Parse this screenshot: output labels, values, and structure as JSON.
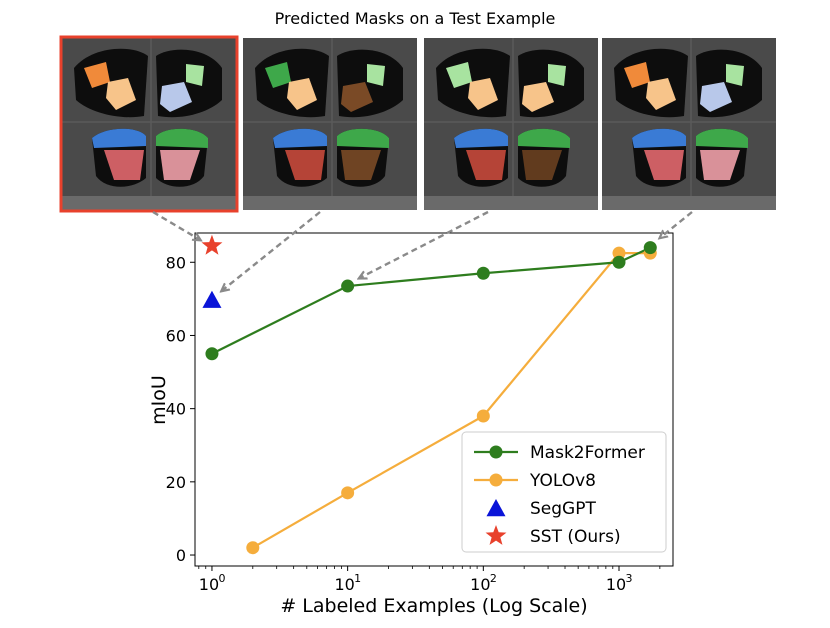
{
  "figure": {
    "title": "Predicted Masks on a Test Example",
    "panels": [
      {
        "method": "SST (Ours)",
        "highlighted": true,
        "highlight_color": "#e8412c"
      },
      {
        "method": "SegGPT",
        "highlighted": false
      },
      {
        "method": "Mask2Former",
        "highlighted": false
      },
      {
        "method": "Mask2Former",
        "highlighted": false
      }
    ]
  },
  "chart_data": {
    "type": "line",
    "xlabel": "# Labeled Examples (Log Scale)",
    "ylabel": "mIoU",
    "xscale": "log",
    "xlim": [
      0.75,
      2500
    ],
    "ylim": [
      -3,
      88
    ],
    "xticks": [
      {
        "value": 1,
        "base": "10",
        "exp": "0"
      },
      {
        "value": 10,
        "base": "10",
        "exp": "1"
      },
      {
        "value": 100,
        "base": "10",
        "exp": "2"
      },
      {
        "value": 1000,
        "base": "10",
        "exp": "3"
      }
    ],
    "yticks": [
      0,
      20,
      40,
      60,
      80
    ],
    "grid": false,
    "legend_position": "lower-right",
    "series": [
      {
        "name": "Mask2Former",
        "kind": "line",
        "color": "#2e7d1e",
        "x": [
          1,
          10,
          100,
          1000,
          1700
        ],
        "y": [
          55,
          73.5,
          77,
          80,
          84
        ]
      },
      {
        "name": "YOLOv8",
        "kind": "line",
        "color": "#f5ad3c",
        "x": [
          2,
          10,
          100,
          1000,
          1700
        ],
        "y": [
          2,
          17,
          38,
          82.5,
          82.5
        ]
      },
      {
        "name": "SegGPT",
        "kind": "triangle",
        "color": "#0a14d8",
        "x": [
          1
        ],
        "y": [
          69.5
        ]
      },
      {
        "name": "SST (Ours)",
        "kind": "star",
        "color": "#e8412c",
        "x": [
          1
        ],
        "y": [
          84.5
        ]
      }
    ],
    "annotations": [
      {
        "from_panel": 0,
        "to_series": "SST (Ours)",
        "to_x": 1,
        "to_y": 84.5,
        "style": "dashed-arrow",
        "color": "#8a8a8a"
      },
      {
        "from_panel": 1,
        "to_series": "SegGPT",
        "to_x": 1,
        "to_y": 69.5,
        "style": "dashed-arrow",
        "color": "#8a8a8a"
      },
      {
        "from_panel": 2,
        "to_series": "Mask2Former",
        "to_x": 10,
        "to_y": 73.5,
        "style": "dashed-arrow",
        "color": "#8a8a8a"
      },
      {
        "from_panel": 3,
        "to_series": "Mask2Former",
        "to_x": 1700,
        "to_y": 84,
        "style": "dashed-arrow",
        "color": "#8a8a8a"
      }
    ]
  }
}
